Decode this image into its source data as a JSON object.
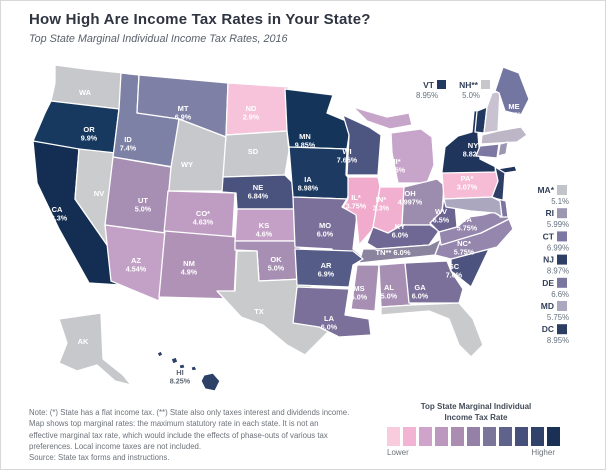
{
  "header": {
    "title": "How High Are Income Tax Rates in Your State?",
    "subtitle": "Top State Marginal Individual Income Tax Rates, 2016"
  },
  "map": {
    "states": [
      {
        "id": "WA",
        "label": "WA",
        "value": "",
        "color": "#c7c8cb"
      },
      {
        "id": "OR",
        "label": "OR",
        "value": "9.9%",
        "color": "#17395f"
      },
      {
        "id": "CA",
        "label": "CA",
        "value": "13.3%",
        "color": "#132e52"
      },
      {
        "id": "NV",
        "label": "NV",
        "value": "",
        "color": "#cbccce"
      },
      {
        "id": "ID",
        "label": "ID",
        "value": "7.4%",
        "color": "#7d81a6"
      },
      {
        "id": "MT",
        "label": "MT",
        "value": "6.9%",
        "color": "#7e81a5"
      },
      {
        "id": "WY",
        "label": "WY",
        "value": "",
        "color": "#c7c8cb"
      },
      {
        "id": "UT",
        "label": "UT",
        "value": "5.0%",
        "color": "#a78fb4"
      },
      {
        "id": "CO",
        "label": "CO*",
        "value": "4.63%",
        "color": "#bf9dc3"
      },
      {
        "id": "AZ",
        "label": "AZ",
        "value": "4.54%",
        "color": "#c3a1c6"
      },
      {
        "id": "NM",
        "label": "NM",
        "value": "4.9%",
        "color": "#b092b7"
      },
      {
        "id": "ND",
        "label": "ND",
        "value": "2.9%",
        "color": "#f7c3da"
      },
      {
        "id": "SD",
        "label": "SD",
        "value": "",
        "color": "#c7c8cb"
      },
      {
        "id": "NE",
        "label": "NE",
        "value": "6.84%",
        "color": "#4a527e"
      },
      {
        "id": "KS",
        "label": "KS",
        "value": "4.6%",
        "color": "#c5a0c6"
      },
      {
        "id": "OK",
        "label": "OK",
        "value": "5.0%",
        "color": "#a78fb4"
      },
      {
        "id": "TX",
        "label": "TX",
        "value": "",
        "color": "#c9cacc"
      },
      {
        "id": "MN",
        "label": "MN",
        "value": "9.85%",
        "color": "#143459"
      },
      {
        "id": "IA",
        "label": "IA",
        "value": "8.98%",
        "color": "#1d3a62"
      },
      {
        "id": "MO",
        "label": "MO",
        "value": "6.0%",
        "color": "#7a7099"
      },
      {
        "id": "WI",
        "label": "WI",
        "value": "7.65%",
        "color": "#4d5681"
      },
      {
        "id": "IL",
        "label": "IL*",
        "value": "3.75%",
        "color": "#f0abcd"
      },
      {
        "id": "IN",
        "label": "IN*",
        "value": "3.3%",
        "color": "#f2b0d0"
      },
      {
        "id": "MI",
        "label": "MI*",
        "value": "4.25%",
        "color": "#c7a4c9"
      },
      {
        "id": "OH",
        "label": "OH",
        "value": "4.997%",
        "color": "#9c8cae"
      },
      {
        "id": "KY",
        "label": "KY",
        "value": "6.0%",
        "color": "#6f6894"
      },
      {
        "id": "WV",
        "label": "WV",
        "value": "6.5%",
        "color": "#6b6390"
      },
      {
        "id": "TN",
        "label": "TN**",
        "value": "6.0%",
        "color": "#8a849e",
        "inline": true
      },
      {
        "id": "AR",
        "label": "AR",
        "value": "6.9%",
        "color": "#555c87"
      },
      {
        "id": "LA",
        "label": "LA",
        "value": "6.0%",
        "color": "#7a7099"
      },
      {
        "id": "MS",
        "label": "MS",
        "value": "5.0%",
        "color": "#a78fb4"
      },
      {
        "id": "AL",
        "label": "AL",
        "value": "5.0%",
        "color": "#a78fb4"
      },
      {
        "id": "GA",
        "label": "GA",
        "value": "6.0%",
        "color": "#7a7099"
      },
      {
        "id": "FL",
        "label": "FL",
        "value": "",
        "color": "#c9cacc"
      },
      {
        "id": "SC",
        "label": "SC",
        "value": "7.0%",
        "color": "#4c537e"
      },
      {
        "id": "NC",
        "label": "NC*",
        "value": "5.75%",
        "color": "#9486ad"
      },
      {
        "id": "VA",
        "label": "VA",
        "value": "5.75%",
        "color": "#9486ad"
      },
      {
        "id": "PA",
        "label": "PA*",
        "value": "3.07%",
        "color": "#f6bcd6"
      },
      {
        "id": "NY",
        "label": "NY",
        "value": "8.82%",
        "color": "#20355c"
      },
      {
        "id": "NJ",
        "label": "",
        "value": "",
        "color": "#2e3f66"
      },
      {
        "id": "DE",
        "label": "",
        "value": "",
        "color": "#7a76a0"
      },
      {
        "id": "MD",
        "label": "",
        "value": "",
        "color": "#aaa7bf"
      },
      {
        "id": "VT",
        "label": "",
        "value": "",
        "color": "#223a61"
      },
      {
        "id": "NH",
        "label": "",
        "value": "",
        "color": "#c9c3d1"
      },
      {
        "id": "ME",
        "label": "ME",
        "value": "7.15%",
        "color": "#7276a1"
      },
      {
        "id": "MA",
        "label": "",
        "value": "",
        "color": "#bcb6c6"
      },
      {
        "id": "CT",
        "label": "",
        "value": "",
        "color": "#7d78a3"
      },
      {
        "id": "RI",
        "label": "",
        "value": "",
        "color": "#9b97b1"
      },
      {
        "id": "AK",
        "label": "AK",
        "value": "",
        "color": "#c7c8cb"
      },
      {
        "id": "HI",
        "label": "HI",
        "value": "8.25%",
        "color": "#2c4068"
      }
    ],
    "callouts": [
      {
        "abbr": "VT",
        "value": "8.95%",
        "color": "#223a61"
      },
      {
        "abbr": "NH**",
        "value": "5.0%",
        "color": "#c6c6cb"
      }
    ],
    "east_list": [
      {
        "abbr": "MA*",
        "value": "5.1%",
        "color": "#c3c4c9"
      },
      {
        "abbr": "RI",
        "value": "5.99%",
        "color": "#9b97b1"
      },
      {
        "abbr": "CT",
        "value": "6.99%",
        "color": "#7d78a3"
      },
      {
        "abbr": "NJ",
        "value": "8.97%",
        "color": "#2e3f66"
      },
      {
        "abbr": "DE",
        "value": "6.6%",
        "color": "#7a76a0"
      },
      {
        "abbr": "MD",
        "value": "5.75%",
        "color": "#aaa7bf"
      },
      {
        "abbr": "DC",
        "value": "8.95%",
        "color": "#2b3d63"
      }
    ]
  },
  "legend": {
    "title_line1": "Top State Marginal Individual",
    "title_line2": "Income Tax Rate",
    "low_label": "Lower",
    "high_label": "Higher",
    "swatches": [
      "#f8cbdd",
      "#f3b3d2",
      "#cfa3ca",
      "#bd98be",
      "#ab8db2",
      "#9581a7",
      "#7b7699",
      "#5f628b",
      "#46507b",
      "#30416a",
      "#1a3155"
    ]
  },
  "notes": {
    "lines": [
      "Note: (*) State has a flat income tax. (**) State also only taxes interest and dividends income.",
      "Map shows top marginal rates: the maximum statutory rate in each state. It is not an",
      "effective marginal tax rate, which would include the effects of phase-outs of various tax",
      "preferences. Local income taxes are not included."
    ],
    "source": "Source: State tax forms and instructions."
  }
}
